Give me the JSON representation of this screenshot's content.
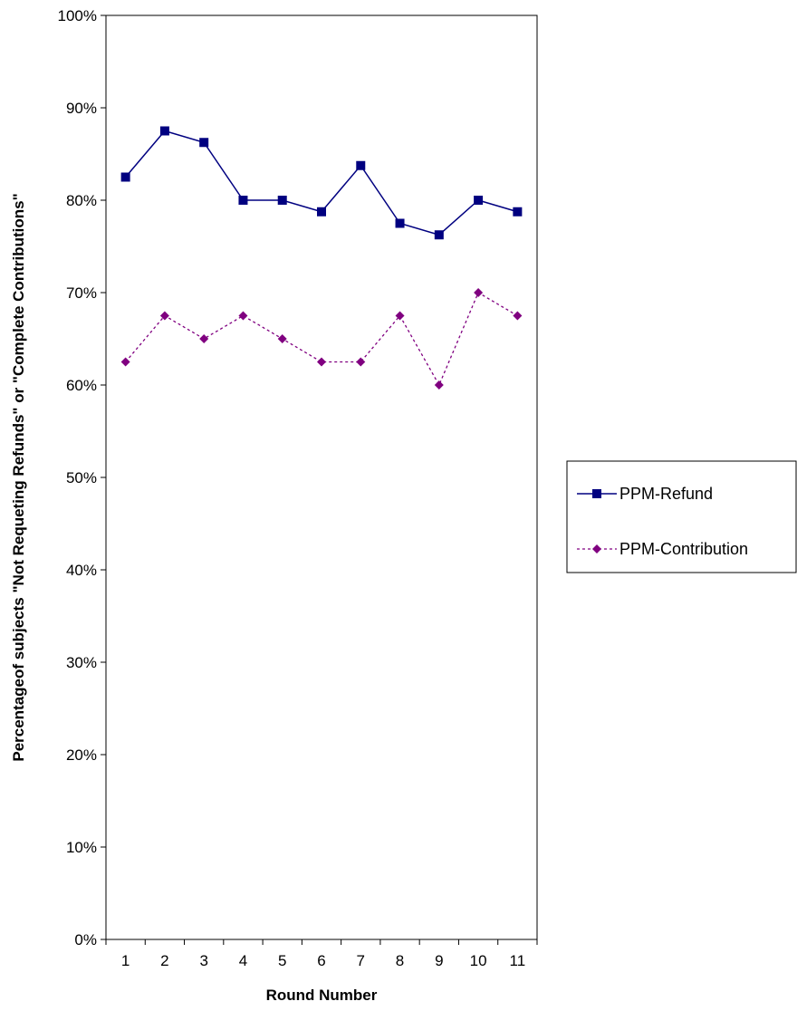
{
  "chart_data": {
    "type": "line",
    "title": "",
    "xlabel": "Round Number",
    "ylabel": "Percentageof subjects \"Not Requeting Refunds\" or \"Complete Contributions\"",
    "x": [
      "1",
      "2",
      "3",
      "4",
      "5",
      "6",
      "7",
      "8",
      "9",
      "10",
      "11"
    ],
    "ylim": [
      0,
      100
    ],
    "yticks": [
      "0%",
      "10%",
      "20%",
      "30%",
      "40%",
      "50%",
      "60%",
      "70%",
      "80%",
      "90%",
      "100%"
    ],
    "grid": false,
    "legend_position": "right",
    "series": [
      {
        "name": "PPM-Refund",
        "color": "#000080",
        "line_style": "solid",
        "marker": "square",
        "values": [
          82.5,
          87.5,
          86.25,
          80,
          80,
          78.75,
          83.75,
          77.5,
          76.25,
          80,
          78.75
        ]
      },
      {
        "name": "PPM-Contribution",
        "color": "#800080",
        "line_style": "dotted",
        "marker": "diamond",
        "values": [
          62.5,
          67.5,
          65,
          67.5,
          65,
          62.5,
          62.5,
          67.5,
          60,
          70,
          67.5
        ]
      }
    ]
  }
}
